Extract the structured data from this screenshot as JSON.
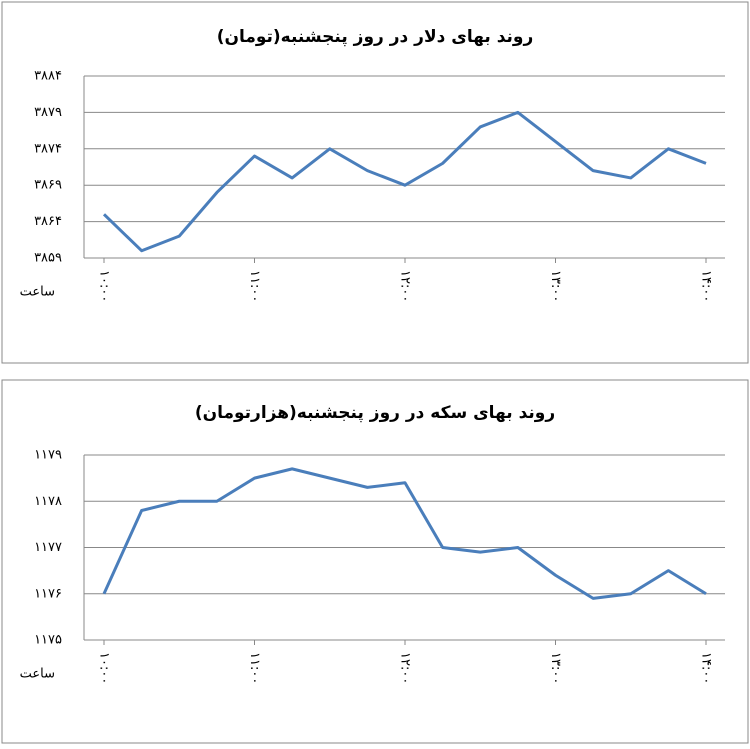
{
  "chart_data": [
    {
      "type": "line",
      "title": "روند بهای دلار در روز پنجشنبه(تومان)",
      "x_label": "ساعت",
      "categories": [
        "۱۰:۰۰",
        null,
        null,
        null,
        "۱۱:۰۰",
        null,
        null,
        null,
        "۱۲:۰۰",
        null,
        null,
        null,
        "۱۳:۰۰",
        null,
        null,
        null,
        "۱۴:۰۰"
      ],
      "series": [
        {
          "color": "#4a7ebb",
          "values": [
            3865,
            3860,
            3862,
            3868,
            3873,
            3870,
            3874,
            3871,
            3869,
            3872,
            3877,
            3879,
            3875,
            3871,
            3870,
            3874,
            3872
          ]
        }
      ],
      "ylim": [
        3859,
        3884
      ],
      "yticks": [
        {
          "value": 3859,
          "label": "۳۸۵۹"
        },
        {
          "value": 3864,
          "label": "۳۸۶۴"
        },
        {
          "value": 3869,
          "label": "۳۸۶۹"
        },
        {
          "value": 3874,
          "label": "۳۸۷۴"
        },
        {
          "value": 3879,
          "label": "۳۸۷۹"
        },
        {
          "value": 3884,
          "label": "۳۸۸۴"
        }
      ],
      "grid": true
    },
    {
      "type": "line",
      "title": "روند بهای سکه در روز پنجشنبه(هزارتومان)",
      "x_label": "ساعت",
      "categories": [
        "۱۰:۰۰",
        null,
        null,
        null,
        "۱۱:۰۰",
        null,
        null,
        null,
        "۱۲:۰۰",
        null,
        null,
        null,
        "۱۳:۰۰",
        null,
        null,
        null,
        "۱۴:۰۰"
      ],
      "series": [
        {
          "color": "#4a7ebb",
          "values": [
            1176.0,
            1177.8,
            1178.0,
            1178.0,
            1178.5,
            1178.7,
            1178.5,
            1178.3,
            1178.4,
            1177.0,
            1176.9,
            1177.0,
            1176.4,
            1175.9,
            1176.0,
            1176.5,
            1176.0
          ]
        }
      ],
      "ylim": [
        1175,
        1179
      ],
      "yticks": [
        {
          "value": 1175,
          "label": "۱۱۷۵"
        },
        {
          "value": 1176,
          "label": "۱۱۷۶"
        },
        {
          "value": 1177,
          "label": "۱۱۷۷"
        },
        {
          "value": 1178,
          "label": "۱۱۷۸"
        },
        {
          "value": 1179,
          "label": "۱۱۷۹"
        }
      ],
      "grid": true
    }
  ]
}
